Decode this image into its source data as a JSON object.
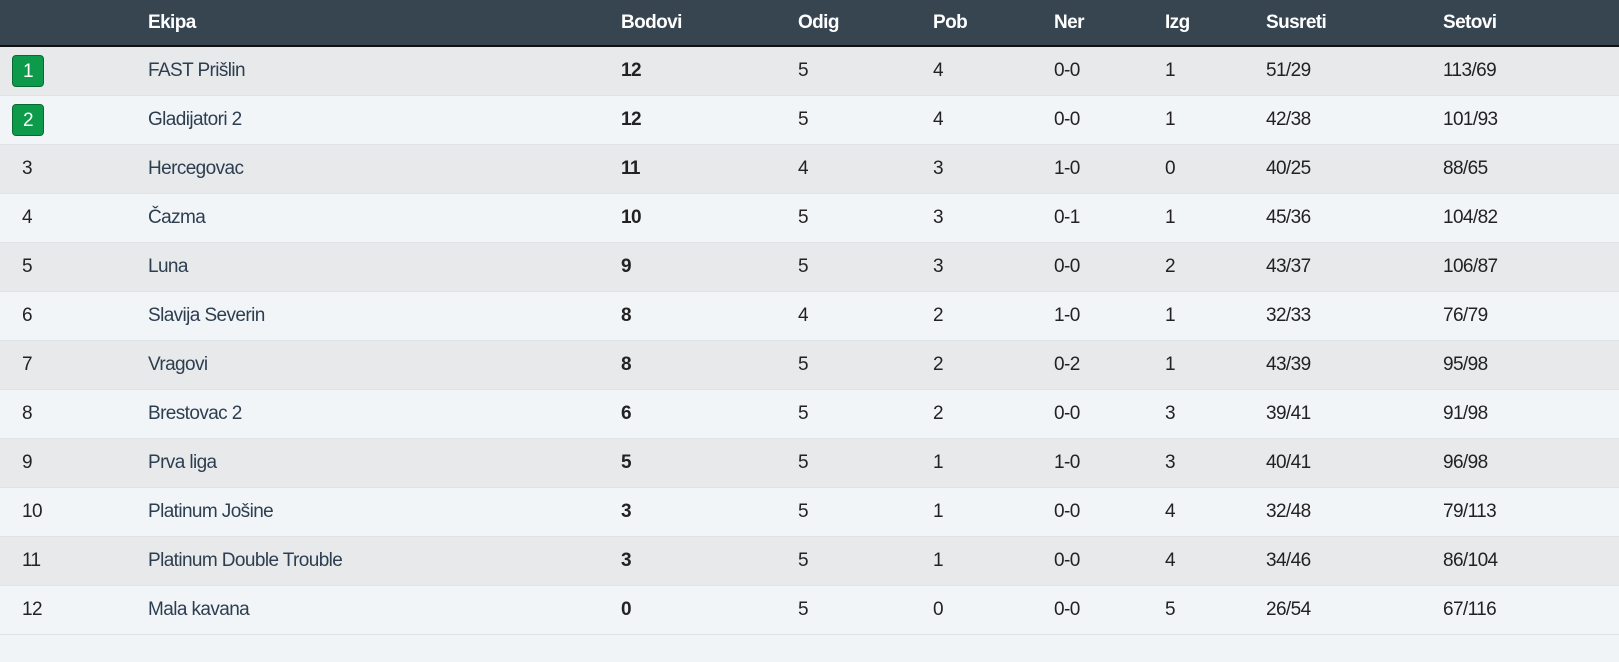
{
  "headers": [
    "",
    "Ekipa",
    "Bodovi",
    "Odig",
    "Pob",
    "Ner",
    "Izg",
    "Susreti",
    "Setovi"
  ],
  "colors": {
    "header_bg": "#36454f",
    "badge": "#0d9a4a"
  },
  "rows": [
    {
      "rank": "1",
      "team": "FAST Prišlin",
      "points": "12",
      "played": "5",
      "won": "4",
      "draw": "0-0",
      "lost": "1",
      "matches": "51/29",
      "sets": "113/69",
      "highlight": true
    },
    {
      "rank": "2",
      "team": "Gladijatori 2",
      "points": "12",
      "played": "5",
      "won": "4",
      "draw": "0-0",
      "lost": "1",
      "matches": "42/38",
      "sets": "101/93",
      "highlight": true
    },
    {
      "rank": "3",
      "team": "Hercegovac",
      "points": "11",
      "played": "4",
      "won": "3",
      "draw": "1-0",
      "lost": "0",
      "matches": "40/25",
      "sets": "88/65"
    },
    {
      "rank": "4",
      "team": "Čazma",
      "points": "10",
      "played": "5",
      "won": "3",
      "draw": "0-1",
      "lost": "1",
      "matches": "45/36",
      "sets": "104/82"
    },
    {
      "rank": "5",
      "team": "Luna",
      "points": "9",
      "played": "5",
      "won": "3",
      "draw": "0-0",
      "lost": "2",
      "matches": "43/37",
      "sets": "106/87"
    },
    {
      "rank": "6",
      "team": "Slavija Severin",
      "points": "8",
      "played": "4",
      "won": "2",
      "draw": "1-0",
      "lost": "1",
      "matches": "32/33",
      "sets": "76/79"
    },
    {
      "rank": "7",
      "team": "Vragovi",
      "points": "8",
      "played": "5",
      "won": "2",
      "draw": "0-2",
      "lost": "1",
      "matches": "43/39",
      "sets": "95/98"
    },
    {
      "rank": "8",
      "team": "Brestovac 2",
      "points": "6",
      "played": "5",
      "won": "2",
      "draw": "0-0",
      "lost": "3",
      "matches": "39/41",
      "sets": "91/98"
    },
    {
      "rank": "9",
      "team": "Prva liga",
      "points": "5",
      "played": "5",
      "won": "1",
      "draw": "1-0",
      "lost": "3",
      "matches": "40/41",
      "sets": "96/98"
    },
    {
      "rank": "10",
      "team": "Platinum Jošine",
      "points": "3",
      "played": "5",
      "won": "1",
      "draw": "0-0",
      "lost": "4",
      "matches": "32/48",
      "sets": "79/113"
    },
    {
      "rank": "11",
      "team": "Platinum Double Trouble",
      "points": "3",
      "played": "5",
      "won": "1",
      "draw": "0-0",
      "lost": "4",
      "matches": "34/46",
      "sets": "86/104"
    },
    {
      "rank": "12",
      "team": "Mala kavana",
      "points": "0",
      "played": "5",
      "won": "0",
      "draw": "0-0",
      "lost": "5",
      "matches": "26/54",
      "sets": "67/116"
    }
  ]
}
